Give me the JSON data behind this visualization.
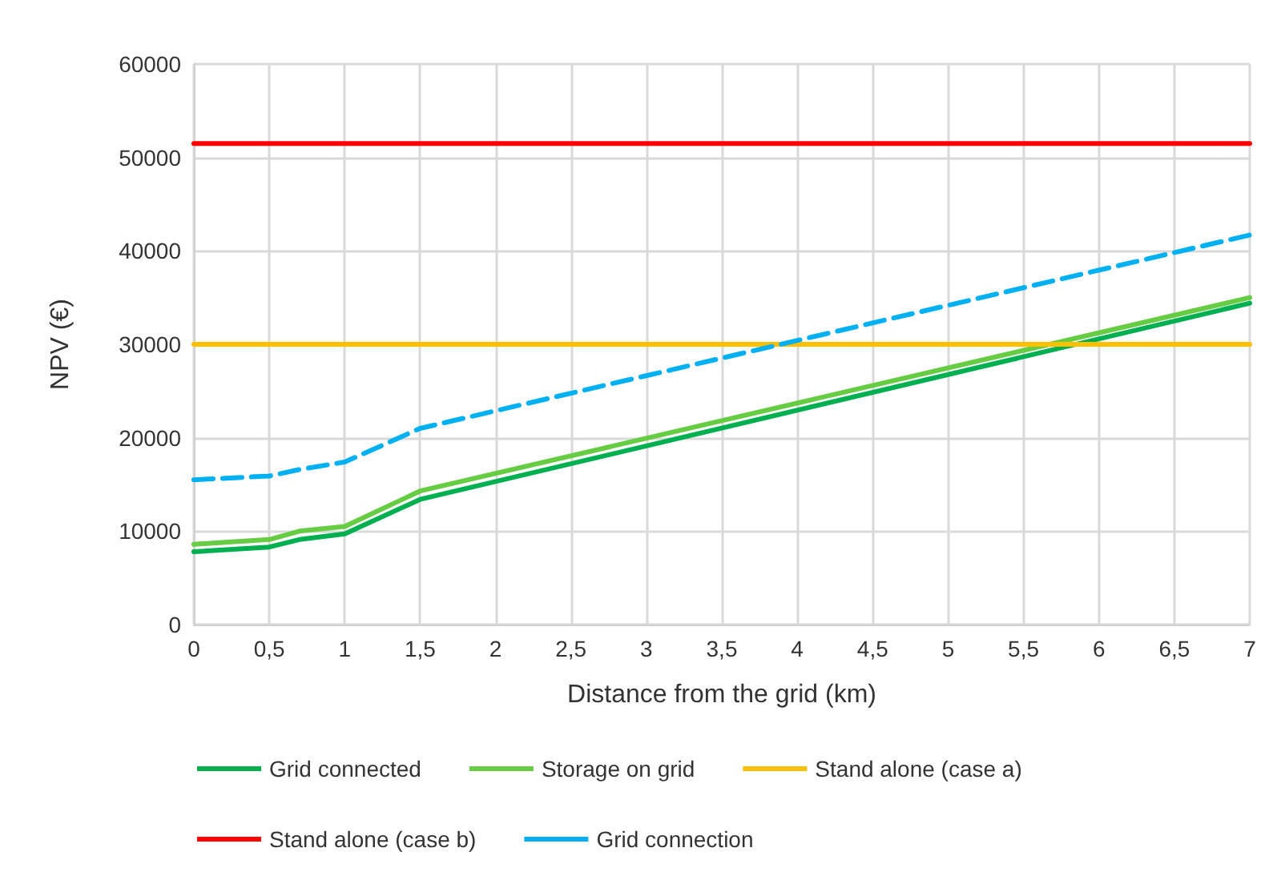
{
  "chart_data": {
    "type": "line",
    "xlabel": "Distance from the grid (km)",
    "ylabel": "NPV (€)",
    "x": [
      0,
      0.5,
      0.7,
      1,
      1.5,
      7
    ],
    "series": [
      {
        "name": "Grid connected",
        "color": "#00b050",
        "values": [
          7800,
          8300,
          9100,
          9700,
          13400,
          34400
        ]
      },
      {
        "name": "Storage on grid",
        "color": "#66cc44",
        "values": [
          8600,
          9100,
          10000,
          10500,
          14300,
          35000
        ]
      },
      {
        "name": "Stand alone (case a)",
        "color": "#ffc000",
        "values": [
          30000,
          30000,
          30000,
          30000,
          30000,
          30000
        ]
      },
      {
        "name": "Stand alone (case b)",
        "color": "#ff0000",
        "values": [
          51500,
          51500,
          51500,
          51500,
          51500,
          51500
        ]
      },
      {
        "name": "Grid connection",
        "color": "#00b0f0",
        "line_style": "dashed",
        "values": [
          15500,
          15900,
          16600,
          17400,
          21000,
          41700
        ]
      }
    ],
    "xlim": [
      0,
      7
    ],
    "xticks": [
      0,
      {
        "value": 0.5,
        "label": "0,5"
      },
      1,
      {
        "value": 1.5,
        "label": "1,5"
      },
      2,
      {
        "value": 2.5,
        "label": "2,5"
      },
      3,
      {
        "value": 3.5,
        "label": "3,5"
      },
      4,
      {
        "value": 4.5,
        "label": "4,5"
      },
      5,
      {
        "value": 5.5,
        "label": "5,5"
      },
      6,
      {
        "value": 6.5,
        "label": "6,5"
      },
      7
    ],
    "ylim": [
      0,
      60000
    ],
    "yticks": [
      0,
      10000,
      20000,
      30000,
      40000,
      50000,
      60000
    ],
    "grid": true,
    "legend": "bottom",
    "marker": "none",
    "line_style": "solid"
  }
}
